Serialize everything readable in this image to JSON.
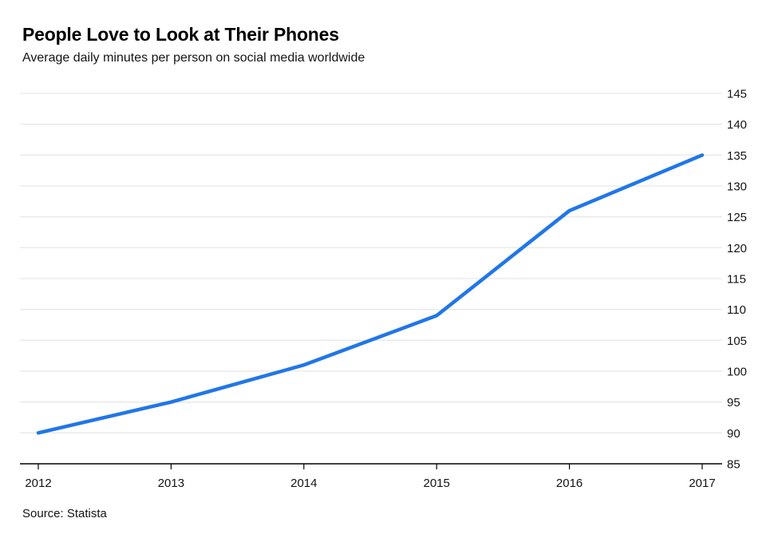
{
  "header": {
    "title": "People Love to Look at Their Phones",
    "subtitle": "Average daily minutes per person on social media worldwide"
  },
  "footer": {
    "source": "Source: Statista"
  },
  "colors": {
    "line": "#2176e8",
    "gridline": "#e8e8e8",
    "axis": "#000000",
    "text": "#141414"
  },
  "chart_data": {
    "type": "line",
    "title": "People Love to Look at Their Phones",
    "subtitle": "Average daily minutes per person on social media worldwide",
    "categories": [
      "2012",
      "2013",
      "2014",
      "2015",
      "2016",
      "2017"
    ],
    "series": [
      {
        "name": "Average daily minutes per person on social media worldwide",
        "values": [
          90,
          95,
          101,
          109,
          126,
          135
        ]
      }
    ],
    "xlabel": "",
    "ylabel": "",
    "ylim": [
      85,
      145
    ],
    "yticks": [
      85,
      90,
      95,
      100,
      105,
      110,
      115,
      120,
      125,
      130,
      135,
      140,
      145
    ],
    "y_axis_side": "right",
    "grid": "horizontal",
    "legend_position": "none",
    "annotation": "Source: Statista"
  }
}
